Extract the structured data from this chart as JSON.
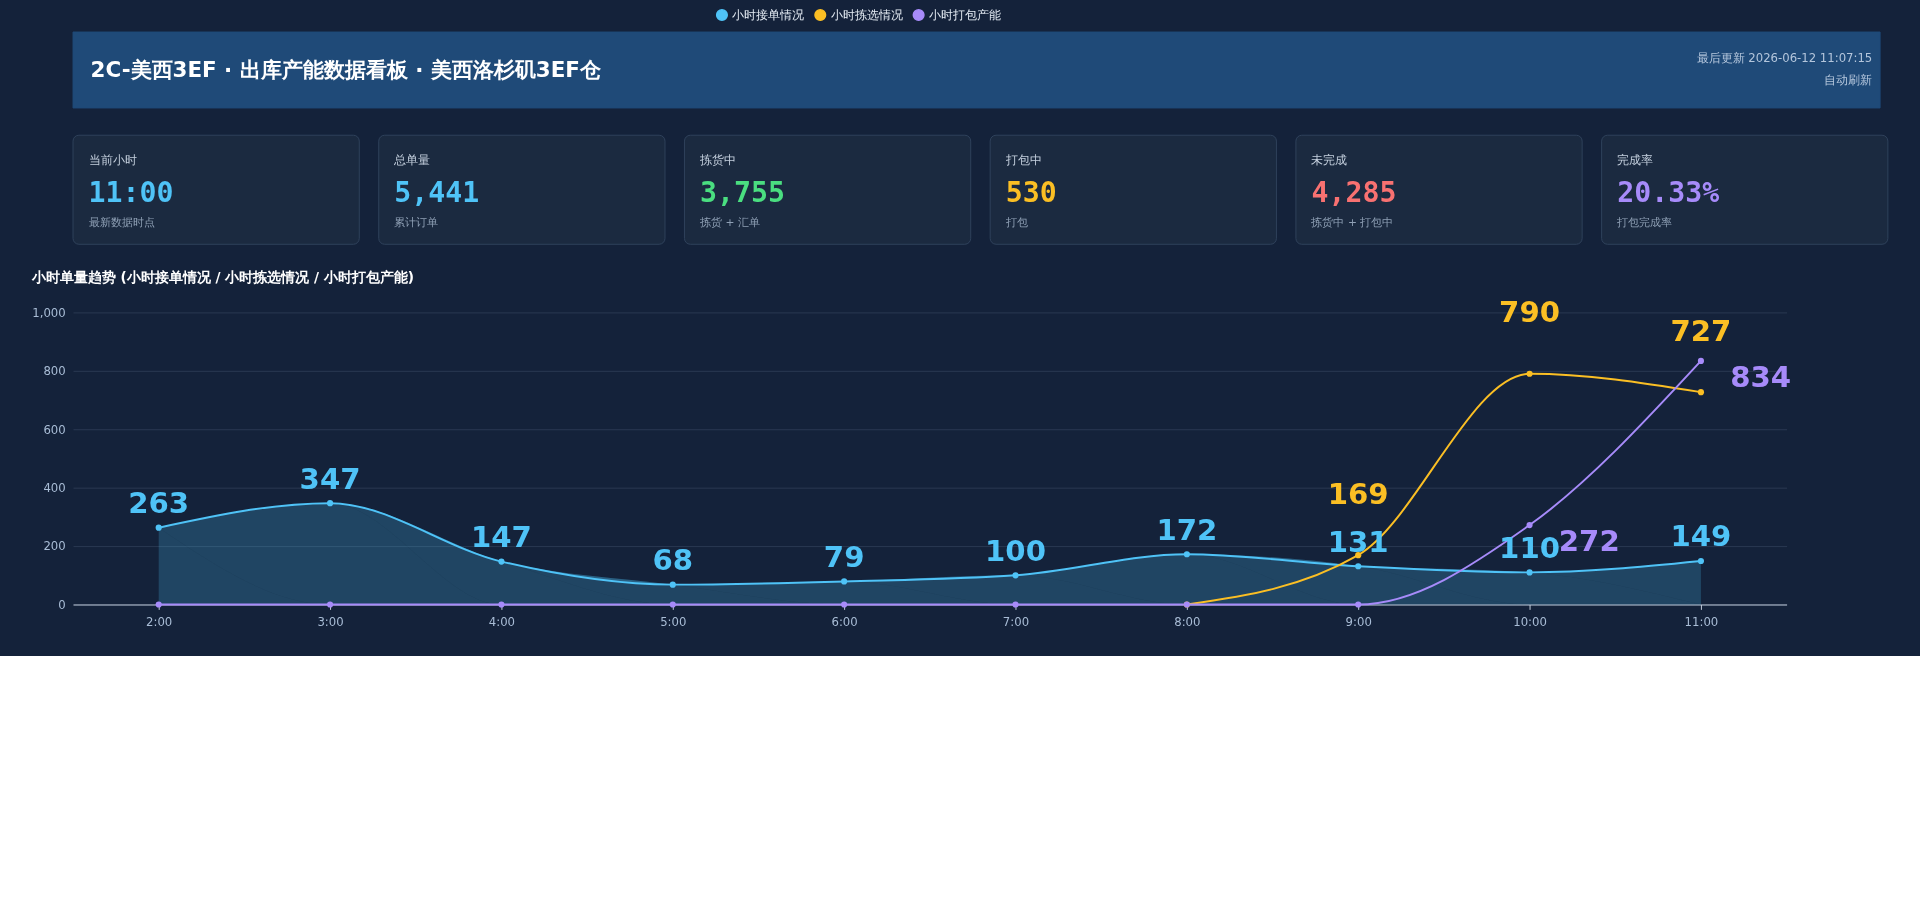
{
  "chart_data": [
    {
      "type": "other",
      "title": "2C-美西3EF · 出库产能数据看板 · 美西洛杉矶3EF仓",
      "annotations": [
        "最后更新 2026-06-12 11:07:15",
        "自动刷新"
      ]
    },
    {
      "type": "other",
      "title": "当前小时",
      "annotations": [
        "11:00",
        "最新数据时点"
      ]
    },
    {
      "type": "other",
      "title": "总单量",
      "annotations": [
        "5,441",
        "累计订单"
      ]
    },
    {
      "type": "other",
      "title": "拣货中",
      "annotations": [
        "3,755",
        "拣货 + 汇单"
      ]
    },
    {
      "type": "other",
      "title": "打包中",
      "annotations": [
        "530",
        "打包"
      ]
    },
    {
      "type": "other",
      "title": "未完成",
      "annotations": [
        "4,285",
        "拣货中 + 打包中"
      ]
    },
    {
      "type": "other",
      "title": "完成率",
      "annotations": [
        "20.33%",
        "打包完成率"
      ]
    },
    {
      "type": "line",
      "title": "小时单量趋势 (小时接单情况 / 小时拣选情况 / 小时打包产能)",
      "categories": [
        "2:00",
        "3:00",
        "4:00",
        "5:00",
        "6:00",
        "7:00",
        "8:00",
        "9:00",
        "10:00",
        "11:00"
      ],
      "ylim": [
        0,
        1000
      ],
      "yticks": [
        0,
        200,
        400,
        600,
        800,
        {
          "value": 1000,
          "label": "1,000"
        }
      ],
      "grid": "y",
      "legend": "top",
      "marker": "circle",
      "line_style": "solid",
      "series": [
        {
          "name": "小时接单情况",
          "type": "area",
          "color": "#4fc3f7",
          "values": [
            263,
            347,
            147,
            68,
            79,
            100,
            172,
            131,
            110,
            149
          ],
          "value_labels": [
            "263",
            "347",
            "147",
            "68",
            "79",
            "100",
            "172",
            "131",
            "110",
            "149"
          ]
        },
        {
          "name": "小时拣选情况",
          "color": "#fbbf24",
          "values": [
            null,
            null,
            null,
            null,
            null,
            null,
            0,
            169,
            790,
            727
          ],
          "value_labels": [
            null,
            null,
            null,
            null,
            null,
            null,
            null,
            "169",
            "790",
            "727"
          ]
        },
        {
          "name": "小时打包产能",
          "color": "#a78bfa",
          "values": [
            0,
            0,
            0,
            0,
            0,
            0,
            0,
            0,
            272,
            834
          ],
          "value_labels": [
            null,
            null,
            null,
            null,
            null,
            null,
            null,
            null,
            "272",
            "834"
          ]
        }
      ]
    }
  ]
}
